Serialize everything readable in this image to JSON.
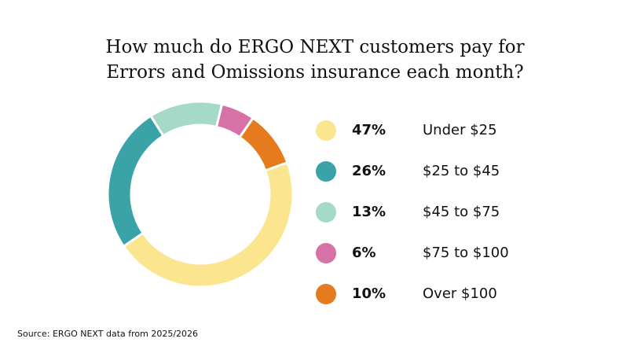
{
  "chart_data": {
    "type": "pie",
    "donut": true,
    "title_lines": [
      "How much do ERGO NEXT customers pay for",
      "Errors and Omissions insurance each month?"
    ],
    "categories": [
      "Under $25",
      "$25 to $45",
      "$45 to $75",
      "$75 to $100",
      "Over $100"
    ],
    "values": [
      47,
      26,
      13,
      6,
      10
    ],
    "labels": [
      "47%",
      "26%",
      "13%",
      "6%",
      "10%"
    ],
    "colors": [
      "#FCE58F",
      "#3AA3A8",
      "#A5D9C8",
      "#D672A6",
      "#E57A1E"
    ],
    "legend_position": "right"
  },
  "source": "Source: ERGO NEXT data from 2025/2026"
}
